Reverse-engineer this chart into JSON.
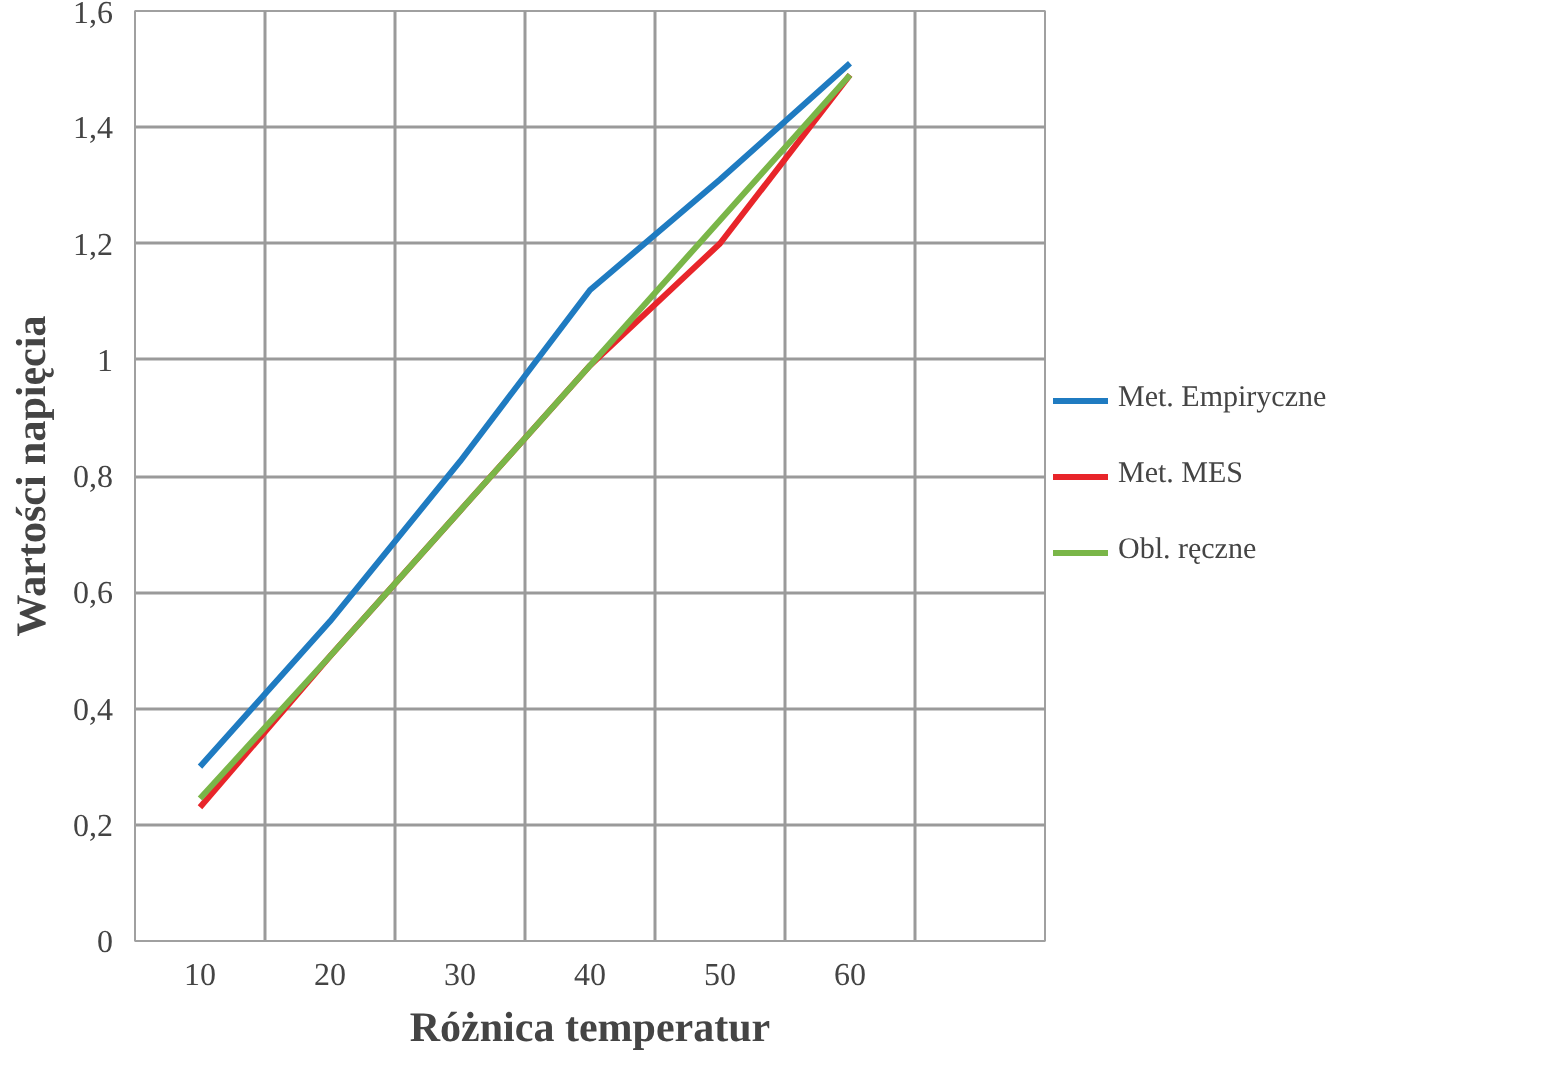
{
  "chart_data": {
    "type": "line",
    "xlabel": "Różnica temperatur",
    "ylabel": "Wartości napięcia",
    "categories": [
      "10",
      "20",
      "30",
      "40",
      "50",
      "60",
      null
    ],
    "ylim": [
      0,
      1.6
    ],
    "yticks": [
      0,
      {
        "value": 0.2,
        "label": "0,2"
      },
      {
        "value": 0.4,
        "label": "0,4"
      },
      {
        "value": 0.6,
        "label": "0,6"
      },
      {
        "value": 0.8,
        "label": "0,8"
      },
      1,
      {
        "value": 1.2,
        "label": "1,2"
      },
      {
        "value": 1.4,
        "label": "1,4"
      },
      {
        "value": 1.6,
        "label": "1,6"
      }
    ],
    "grid": true,
    "legend": "right",
    "marker": "none",
    "series": [
      {
        "name": "Met. Empiryczne",
        "color": "#1f7bc1",
        "values": [
          0.3,
          0.55,
          0.825,
          1.12,
          1.31,
          1.51,
          null
        ]
      },
      {
        "name": "Met. MES",
        "color": "#e8252a",
        "values": [
          0.23,
          0.49,
          0.74,
          0.99,
          1.2,
          1.49,
          null
        ]
      },
      {
        "name": "Obl. ręczne",
        "color": "#7ab648",
        "values": [
          0.245,
          0.49,
          0.74,
          0.99,
          1.24,
          1.49,
          null
        ]
      }
    ]
  }
}
